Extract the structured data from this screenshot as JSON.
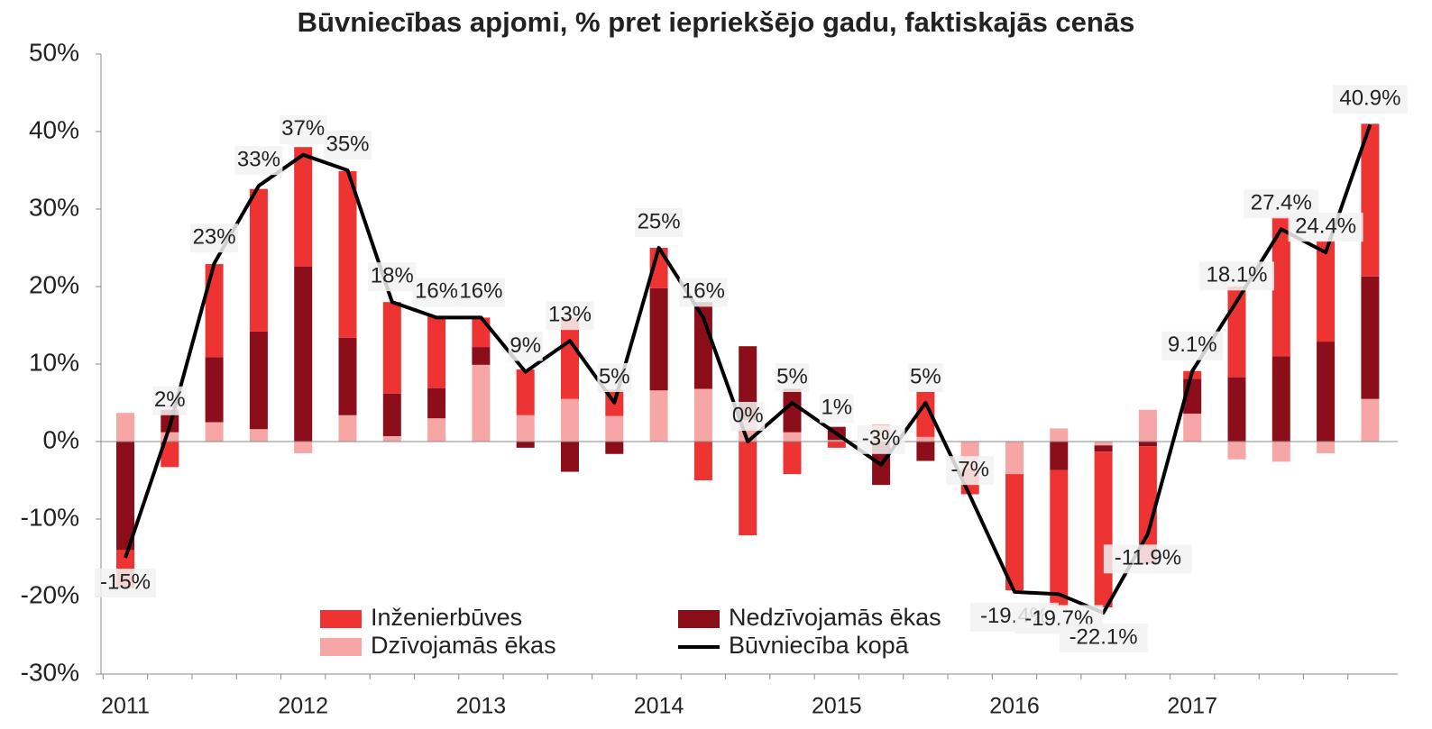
{
  "chart_data": {
    "type": "bar",
    "title": "Būvniecības apjomi, % pret iepriekšējo gadu, faktiskajās cenās",
    "categories": [
      "2011",
      null,
      null,
      null,
      "2012",
      null,
      null,
      null,
      "2013",
      null,
      null,
      null,
      "2014",
      null,
      null,
      null,
      "2015",
      null,
      null,
      null,
      "2016",
      null,
      null,
      null,
      "2017",
      null,
      null,
      null,
      null
    ],
    "series": [
      {
        "name": "Inženierbūves",
        "color": "#ee3333",
        "values": [
          -4.9,
          -3.3,
          12,
          18.4,
          15.4,
          21.5,
          11.8,
          9.3,
          3.8,
          5.9,
          10.5,
          3.4,
          5.2,
          -5,
          -12.1,
          -4.2,
          -0.8,
          0,
          5.8,
          -3.3,
          -15,
          -17.6,
          -20.1,
          -15.2,
          1,
          11.7,
          18,
          13,
          19.7
        ]
      },
      {
        "name": "Nedzīvojamās ēkas",
        "color": "#8b0e1a",
        "values": [
          -14,
          2.9,
          8.4,
          12.6,
          22.6,
          10,
          5.5,
          3.9,
          2.3,
          -0.8,
          -3.9,
          -1.6,
          13.2,
          11.2,
          9.5,
          5.6,
          1.7,
          -5.6,
          -2.5,
          0,
          0,
          -3.7,
          -0.8,
          -0.6,
          4.5,
          8.3,
          11,
          12.9,
          15.8
        ]
      },
      {
        "name": "Dzīvojamās ēkas",
        "color": "#f7a6a6",
        "values": [
          3.7,
          1.2,
          2.5,
          1.6,
          -1.5,
          3.4,
          0.7,
          3,
          9.9,
          3.4,
          5.5,
          3.3,
          6.6,
          6.8,
          2.8,
          1.2,
          0.2,
          2.2,
          0.6,
          -3.5,
          -4.2,
          1.7,
          -0.5,
          4.1,
          3.6,
          -2.3,
          -2.6,
          -1.5,
          5.5
        ]
      },
      {
        "name": "Būvniecība kopā",
        "type": "line",
        "color": "#000000",
        "values": [
          -15,
          2,
          23,
          33,
          37,
          35,
          18,
          16,
          16,
          9,
          13,
          5,
          25,
          16,
          0,
          5,
          1,
          -3,
          5,
          -7,
          -19.4,
          -19.7,
          -22.1,
          -11.9,
          9.1,
          18.1,
          27.4,
          24.4,
          40.9
        ],
        "value_labels": [
          "-15%",
          "2%",
          "23%",
          "33%",
          "37%",
          "35%",
          "18%",
          "16%",
          "16%",
          "9%",
          "13%",
          "5%",
          "25%",
          "16%",
          "0%",
          "5%",
          "1%",
          "-3%",
          "5%",
          "-7%",
          "-19.4%",
          "-19.7%",
          "-22.1%",
          "-11.9%",
          "9.1%",
          "18.1%",
          "27.4%",
          "24.4%",
          "40.9%"
        ]
      }
    ],
    "ylim": [
      -30,
      50
    ],
    "yticks": [
      {
        "value": -30,
        "label": "-30%"
      },
      {
        "value": -20,
        "label": "-20%"
      },
      {
        "value": -10,
        "label": "-10%"
      },
      {
        "value": 0,
        "label": "0%"
      },
      {
        "value": 10,
        "label": "10%"
      },
      {
        "value": 20,
        "label": "20%"
      },
      {
        "value": 30,
        "label": "30%"
      },
      {
        "value": 40,
        "label": "40%"
      },
      {
        "value": 50,
        "label": "50%"
      }
    ],
    "legend": "bottom"
  }
}
